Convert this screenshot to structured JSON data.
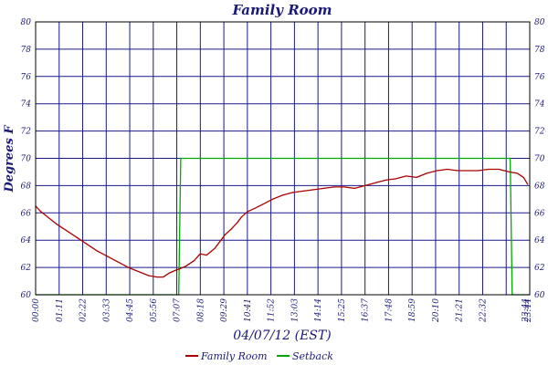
{
  "chart_data": {
    "type": "line",
    "title": "Family Room",
    "xlabel": "04/07/12 (EST)",
    "ylabel": "Degrees F",
    "ylim": [
      60,
      80
    ],
    "yticks": [
      60,
      62,
      64,
      66,
      68,
      70,
      72,
      74,
      76,
      78,
      80
    ],
    "xlim": [
      0,
      24
    ],
    "xticks": [
      "00:00",
      "01:11",
      "02:22",
      "03:33",
      "04:45",
      "05:56",
      "07:07",
      "08:18",
      "09:29",
      "10:41",
      "11:52",
      "13:03",
      "14:14",
      "15:25",
      "16:37",
      "17:48",
      "18:59",
      "20:10",
      "21:21",
      "22:32",
      "23:44",
      "23:44"
    ],
    "grid": true,
    "legend_position": "bottom",
    "series": [
      {
        "name": "Family Room",
        "color": "#aa0000",
        "x": [
          0.0,
          0.25,
          0.5,
          1.0,
          1.5,
          2.0,
          2.5,
          3.0,
          3.5,
          4.0,
          4.5,
          5.0,
          5.5,
          5.9,
          6.2,
          6.5,
          6.8,
          7.0,
          7.3,
          7.7,
          8.0,
          8.3,
          8.7,
          9.0,
          9.2,
          9.5,
          9.8,
          10.0,
          10.3,
          10.6,
          11.0,
          11.5,
          12.0,
          12.5,
          13.0,
          13.5,
          14.0,
          14.5,
          15.0,
          15.5,
          16.0,
          16.5,
          17.0,
          17.5,
          18.0,
          18.5,
          19.0,
          19.5,
          20.0,
          20.5,
          21.0,
          21.5,
          22.0,
          22.5,
          23.0,
          23.4,
          23.7,
          23.9
        ],
        "values": [
          66.5,
          66.1,
          65.8,
          65.2,
          64.7,
          64.2,
          63.7,
          63.2,
          62.8,
          62.4,
          62.0,
          61.7,
          61.4,
          61.3,
          61.3,
          61.6,
          61.8,
          61.9,
          62.1,
          62.5,
          63.0,
          62.9,
          63.4,
          64.0,
          64.4,
          64.8,
          65.3,
          65.7,
          66.1,
          66.3,
          66.6,
          67.0,
          67.3,
          67.5,
          67.6,
          67.7,
          67.8,
          67.9,
          67.9,
          67.8,
          68.0,
          68.2,
          68.4,
          68.5,
          68.7,
          68.6,
          68.9,
          69.1,
          69.2,
          69.1,
          69.1,
          69.1,
          69.2,
          69.2,
          69.0,
          68.9,
          68.6,
          68.1
        ]
      },
      {
        "name": "Setback",
        "color": "#00aa00",
        "x": [
          0.0,
          6.95,
          7.05,
          23.05,
          23.15,
          24.0
        ],
        "values": [
          60,
          60,
          70,
          70,
          60,
          60
        ]
      }
    ]
  }
}
